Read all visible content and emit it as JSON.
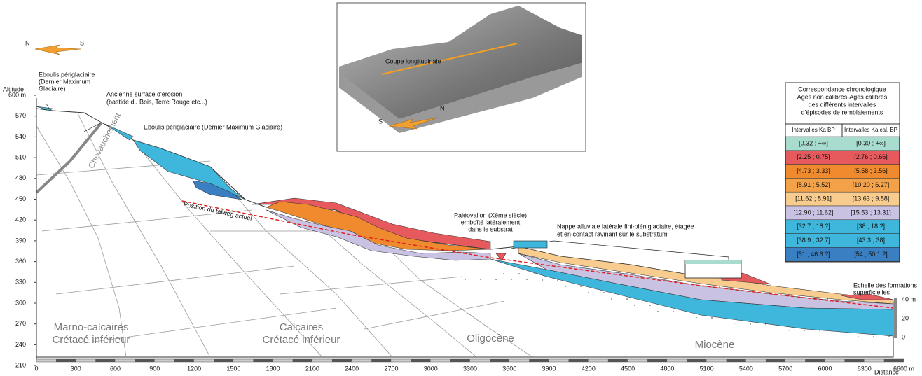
{
  "axis": {
    "y_title": "Altitude",
    "y_labels": [
      "600 m",
      "570",
      "540",
      "510",
      "480",
      "450",
      "420",
      "390",
      "360",
      "330",
      "300",
      "270",
      "240",
      "210"
    ],
    "x_labels": [
      "0",
      "300",
      "600",
      "900",
      "1200",
      "1500",
      "1800",
      "2100",
      "2400",
      "2700",
      "3000",
      "3300",
      "3600",
      "3900",
      "4200",
      "4500",
      "4800",
      "5100",
      "5400",
      "5700",
      "6000",
      "6300",
      "6600 m"
    ],
    "x_title": "Distance"
  },
  "compass": {
    "north": "N",
    "south": "S"
  },
  "annotations": {
    "eboulis_top": [
      "Eboulis périglaciaire",
      "(Dernier Maximum",
      "Glaciaire)"
    ],
    "surface": [
      "Ancienne surface d'érosion",
      "(bastide du Bois, Terre Rouge etc...)"
    ],
    "eboulis_right": "Eboulis périglaciaire (Dernier Maximum Glaciaire)",
    "chevauchement": "Chevauchement",
    "talweg": "Position du talweg actuel",
    "paleovallon": [
      "Paléovallon (Xème siècle)",
      "emboîté latéralement",
      "dans le substrat"
    ],
    "nappe": [
      "Nappe alluviale latérale fini-pléniglaciaire, étagée",
      "et en contact ravinant sur le substratum"
    ]
  },
  "formations": [
    [
      "Marno-calcaires",
      "Crétacé inférieur"
    ],
    [
      "Calcaires",
      "Crétacé inférieur"
    ],
    [
      "Oligocène"
    ],
    [
      "Miocène"
    ]
  ],
  "scale": {
    "title": [
      "Echelle des formations",
      "superficielles"
    ],
    "labels": [
      "40 m",
      "20",
      "0"
    ]
  },
  "inset": {
    "title": "Coupe longitudinale",
    "south": "S",
    "north": "N"
  },
  "legend": {
    "title": [
      "Correspondance chronologique",
      "Ages non calibrés-Ages calibrés",
      "des différents intervalles",
      "d'épisodes de remblaiements"
    ],
    "columns": [
      "Intervalles Ka BP",
      "Intervalles Ka cal. BP"
    ],
    "rows": [
      {
        "color": "#a8dccf",
        "cells": [
          "[0.32 ; +∞]",
          "[0.30 ; +∞]"
        ]
      },
      {
        "color": "#e65a5e",
        "cells": [
          "[2.25 ; 0.75]",
          "[2.76 ; 0.66]"
        ]
      },
      {
        "color": "#ef8a2e",
        "cells": [
          "[4.73 ; 3.33]",
          "[5.58 ; 3.56]"
        ]
      },
      {
        "color": "#f3a24a",
        "cells": [
          "[8.91 ; 5.52]",
          "[10.20 ; 6.27]"
        ]
      },
      {
        "color": "#f8cc8e",
        "cells": [
          "[11.62 ; 8.91]",
          "[13.63 ; 9.88]"
        ]
      },
      {
        "color": "#c9c2e2",
        "cells": [
          "[12.90 ; 11.62]",
          "[15.53 ; 13.31]"
        ]
      },
      {
        "color": "#3fb6dc",
        "cells": [
          "[32.7 ; 18 ?]",
          "[38 ; 18 ?]"
        ]
      },
      {
        "color": "#3fb6dc",
        "cells": [
          "[38.9 ; 32.7]",
          "[43.3 ; 38]"
        ]
      },
      {
        "color": "#3a7fc1",
        "cells": [
          "[51 ; 46.6 ?]",
          "[54 ; 50.1 ?]"
        ]
      }
    ]
  }
}
